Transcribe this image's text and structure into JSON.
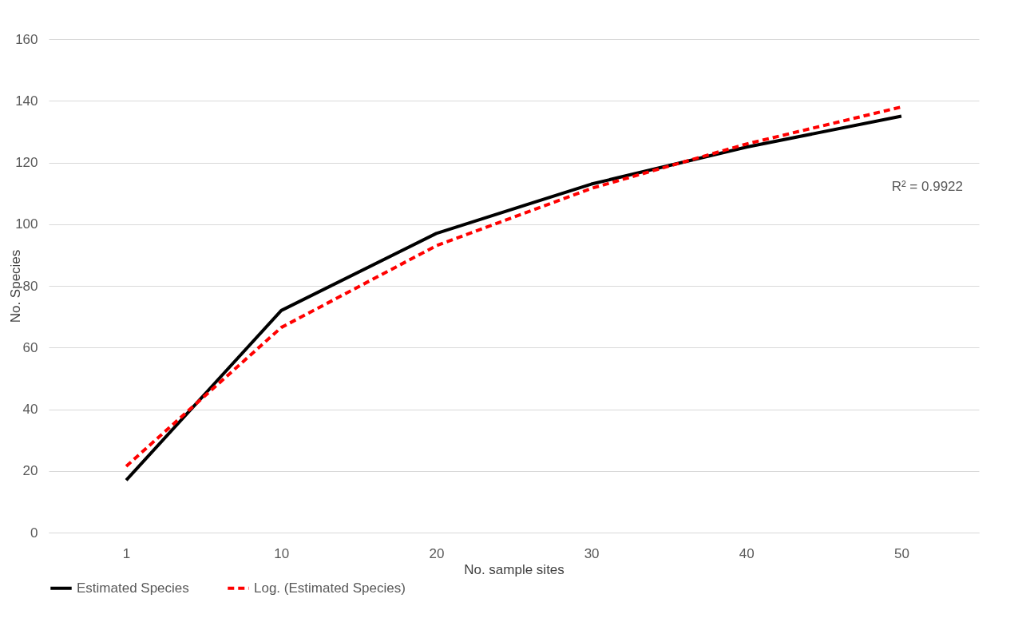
{
  "chart_data": {
    "type": "line",
    "xlabel": "No. sample sites",
    "ylabel": "No. Species",
    "categories": [
      "1",
      "10",
      "20",
      "30",
      "40",
      "50"
    ],
    "series": [
      {
        "name": "Estimated Species",
        "color": "#000000",
        "line_style": "solid",
        "values": [
          17,
          72,
          97,
          113,
          125,
          135
        ]
      },
      {
        "name": "Log. (Estimated Species)",
        "color": "#ff0000",
        "line_style": "dashed",
        "values": [
          21.5,
          66.5,
          93,
          111.6,
          126,
          138
        ]
      }
    ],
    "ylim": [
      0,
      160
    ],
    "yticks": [
      0,
      20,
      40,
      60,
      80,
      100,
      120,
      140,
      160
    ],
    "grid": "y",
    "legend": "bottom",
    "annotations": [
      "R² = 0.9922"
    ]
  }
}
